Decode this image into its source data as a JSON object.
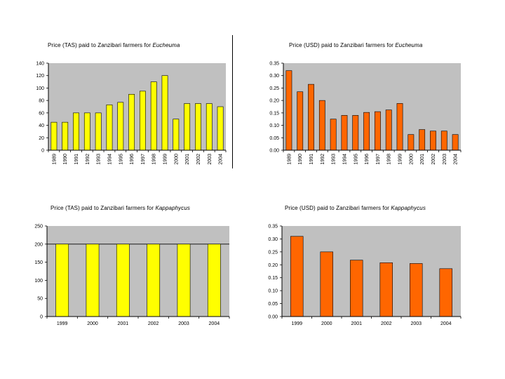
{
  "colors": {
    "plot_bg": "#c0c0c0",
    "yellow": "#ffff00",
    "orange": "#ff6600",
    "axis": "#000000"
  },
  "chart_data": [
    {
      "id": "tas-eucheuma",
      "type": "bar",
      "title_prefix": "Price (TAS) paid to Zanzibari farmers for ",
      "title_species": "Eucheuma",
      "categories": [
        "1989",
        "1990",
        "1991",
        "1992",
        "1993",
        "1994",
        "1995",
        "1996",
        "1997",
        "1998",
        "1999",
        "2000",
        "2001",
        "2002",
        "2003",
        "2004"
      ],
      "values": [
        45,
        45,
        60,
        60,
        60,
        73,
        77,
        90,
        95,
        110,
        120,
        50,
        75,
        75,
        75,
        70
      ],
      "ylim": [
        0,
        140
      ],
      "yticks": [
        "0",
        "20",
        "40",
        "60",
        "80",
        "100",
        "120",
        "140"
      ],
      "xlabel": "",
      "ylabel": "",
      "bar_color": "yellow",
      "xlabel_rotated": true,
      "gridline": null
    },
    {
      "id": "usd-eucheuma",
      "type": "bar",
      "title_prefix": "Price (USD) paid to Zanzibari farmers for ",
      "title_species": "Eucheuma",
      "categories": [
        "1989",
        "1990",
        "1991",
        "1992",
        "1993",
        "1994",
        "1995",
        "1996",
        "1997",
        "1998",
        "1999",
        "2000",
        "2001",
        "2002",
        "2003",
        "2004"
      ],
      "values": [
        0.32,
        0.235,
        0.265,
        0.2,
        0.125,
        0.14,
        0.14,
        0.152,
        0.155,
        0.162,
        0.188,
        0.063,
        0.083,
        0.077,
        0.077,
        0.063
      ],
      "ylim": [
        0,
        0.35
      ],
      "yticks": [
        "0.00",
        "0.05",
        "0.10",
        "0.15",
        "0.20",
        "0.25",
        "0.30",
        "0.35"
      ],
      "xlabel": "",
      "ylabel": "",
      "bar_color": "orange",
      "xlabel_rotated": true,
      "gridline": null
    },
    {
      "id": "tas-kappaphycus",
      "type": "bar",
      "title_prefix": "Price (TAS) paid to Zanzibari farmers for ",
      "title_species": "Kappaphycus",
      "categories": [
        "1999",
        "2000",
        "2001",
        "2002",
        "2003",
        "2004"
      ],
      "values": [
        200,
        200,
        200,
        200,
        200,
        200
      ],
      "ylim": [
        0,
        250
      ],
      "yticks": [
        "0",
        "50",
        "100",
        "150",
        "200",
        "250"
      ],
      "xlabel": "",
      "ylabel": "",
      "bar_color": "yellow",
      "xlabel_rotated": false,
      "gridline": 200
    },
    {
      "id": "usd-kappaphycus",
      "type": "bar",
      "title_prefix": "Price (USD) paid to Zanzibari farmers for ",
      "title_species": "Kappaphycus",
      "categories": [
        "1999",
        "2000",
        "2001",
        "2002",
        "2003",
        "2004"
      ],
      "values": [
        0.31,
        0.25,
        0.218,
        0.208,
        0.205,
        0.185
      ],
      "ylim": [
        0,
        0.35
      ],
      "yticks": [
        "0.00",
        "0.05",
        "0.10",
        "0.15",
        "0.20",
        "0.25",
        "0.30",
        "0.35"
      ],
      "xlabel": "",
      "ylabel": "",
      "bar_color": "orange",
      "xlabel_rotated": false,
      "gridline": null
    }
  ]
}
